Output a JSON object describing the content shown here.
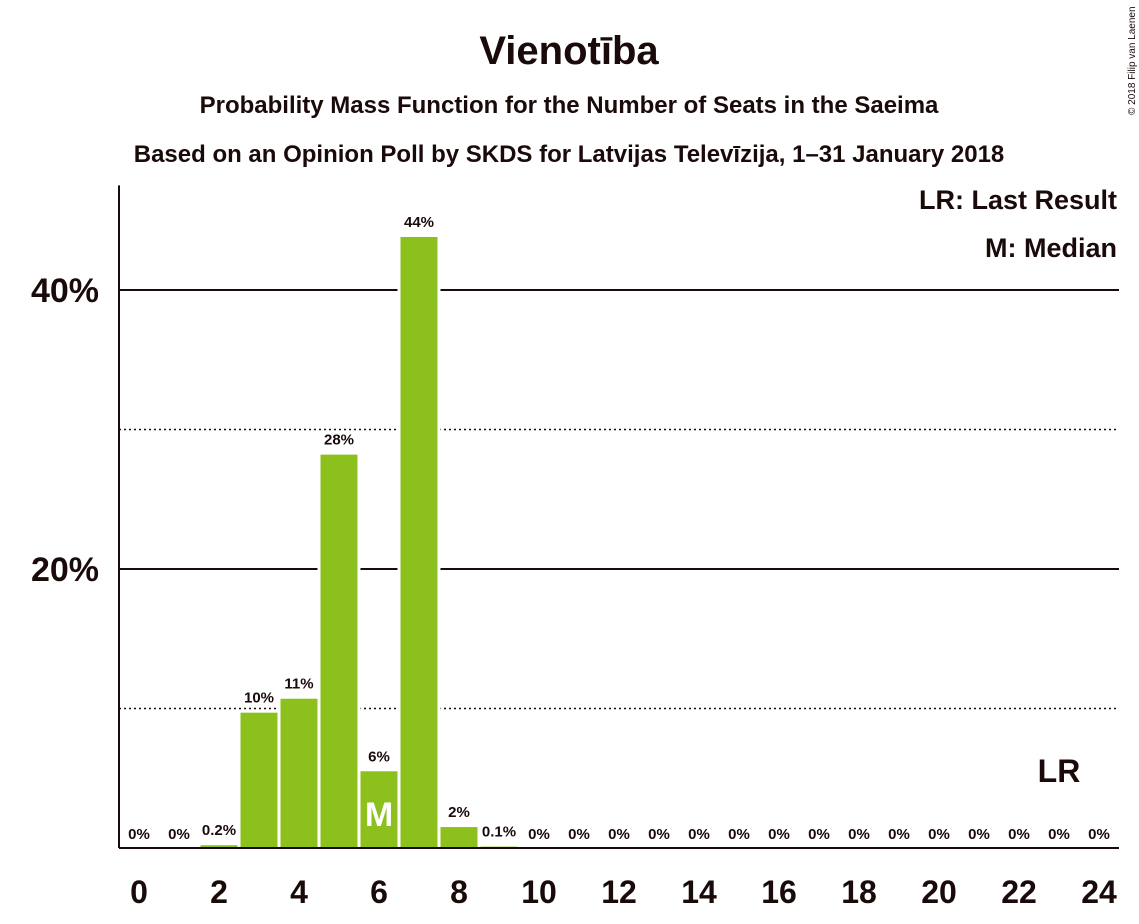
{
  "chart_data": {
    "type": "bar",
    "title": "Vienotība",
    "subtitle": "Probability Mass Function for the Number of Seats in the Saeima",
    "subtitle2": "Based on an Opinion Poll by SKDS for Latvijas Televīzija, 1–31 January 2018",
    "copyright": "© 2018 Filip van Laenen",
    "xlabel": "",
    "ylabel": "",
    "x": [
      0,
      1,
      2,
      3,
      4,
      5,
      6,
      7,
      8,
      9,
      10,
      11,
      12,
      13,
      14,
      15,
      16,
      17,
      18,
      19,
      20,
      21,
      22,
      23,
      24
    ],
    "values": [
      0,
      0,
      0.2,
      9.7,
      10.7,
      28.2,
      5.5,
      43.8,
      1.5,
      0.1,
      0,
      0,
      0,
      0,
      0,
      0,
      0,
      0,
      0,
      0,
      0,
      0,
      0,
      0,
      0
    ],
    "value_labels": [
      "0%",
      "0%",
      "0.2%",
      "10%",
      "11%",
      "28%",
      "6%",
      "44%",
      "2%",
      "0.1%",
      "0%",
      "0%",
      "0%",
      "0%",
      "0%",
      "0%",
      "0%",
      "0%",
      "0%",
      "0%",
      "0%",
      "0%",
      "0%",
      "0%",
      "0%"
    ],
    "xticks": [
      "0",
      "2",
      "4",
      "6",
      "8",
      "10",
      "12",
      "14",
      "16",
      "18",
      "20",
      "22",
      "24"
    ],
    "yticks": [
      {
        "value": 20,
        "label": "20%"
      },
      {
        "value": 40,
        "label": "40%"
      }
    ],
    "minor_gridlines": [
      10,
      30
    ],
    "ylim": [
      0,
      47.5
    ],
    "xlim": [
      0,
      24
    ],
    "bar_color": "#8cc01c",
    "median": 6,
    "median_label": "M",
    "last_result": 23,
    "last_result_label": "LR",
    "legend": {
      "placement": "top-right",
      "items": [
        "LR: Last Result",
        "M: Median"
      ]
    }
  }
}
